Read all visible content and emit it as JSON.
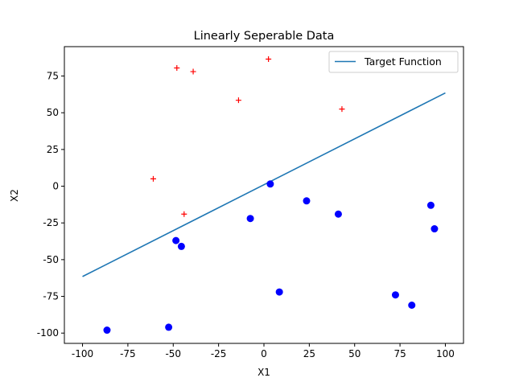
{
  "chart_data": {
    "type": "scatter",
    "title": "Linearly Seperable Data",
    "xlabel": "X1",
    "ylabel": "X2",
    "xlim": [
      -110,
      110
    ],
    "ylim": [
      -107,
      95
    ],
    "xticks": [
      -100,
      -75,
      -50,
      -25,
      0,
      25,
      50,
      75,
      100
    ],
    "yticks": [
      -100,
      -75,
      -50,
      -25,
      0,
      25,
      50,
      75
    ],
    "grid": false,
    "legend_position": "top-right",
    "colors": {
      "line": "#1f77b4",
      "positive": "#ff0000",
      "negative": "#0000ff"
    },
    "line": {
      "name": "Target Function",
      "x": [
        -100,
        100
      ],
      "y": [
        -61.5,
        63.5
      ]
    },
    "positive_points": [
      {
        "x": -48,
        "y": 80.5
      },
      {
        "x": -39,
        "y": 78
      },
      {
        "x": 2.5,
        "y": 86.5
      },
      {
        "x": -14,
        "y": 58.5
      },
      {
        "x": 43,
        "y": 52.5
      },
      {
        "x": -61,
        "y": 5
      },
      {
        "x": -44,
        "y": -19
      }
    ],
    "negative_points": [
      {
        "x": 3.5,
        "y": 1.5
      },
      {
        "x": 23.5,
        "y": -10
      },
      {
        "x": -7.5,
        "y": -22
      },
      {
        "x": 41,
        "y": -19
      },
      {
        "x": 92,
        "y": -13
      },
      {
        "x": 94,
        "y": -29
      },
      {
        "x": -48.5,
        "y": -37
      },
      {
        "x": -45.5,
        "y": -41
      },
      {
        "x": 8.5,
        "y": -72
      },
      {
        "x": 72.5,
        "y": -74
      },
      {
        "x": 81.5,
        "y": -81
      },
      {
        "x": -86.5,
        "y": -98
      },
      {
        "x": -52.5,
        "y": -96
      }
    ]
  }
}
